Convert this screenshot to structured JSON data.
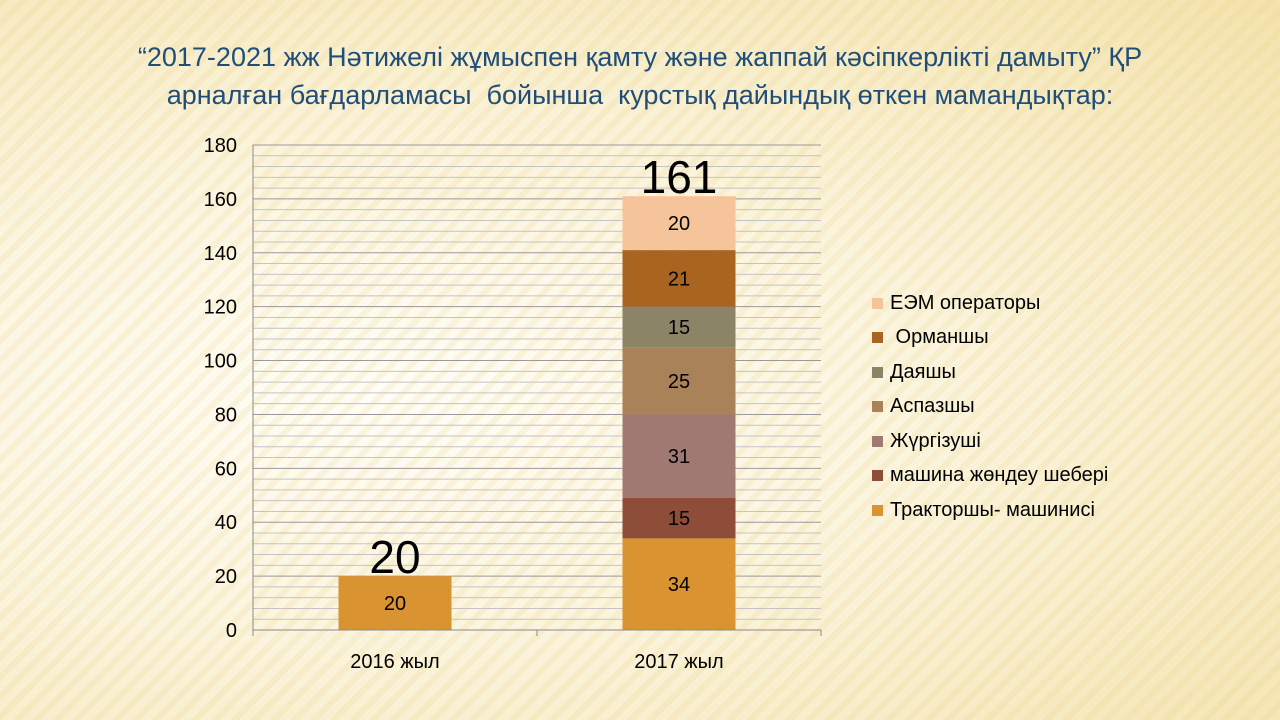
{
  "title_lines": [
    "“2017-2021 жж Нәтижелі жұмыспен қамту және жаппай кәсіпкерлікті дамыту” ҚР",
    "арналған бағдарламасы  бойынша  курстық дайындық өткен мамандықтар:"
  ],
  "chart_data": {
    "type": "bar",
    "stacked": true,
    "categories": [
      "2016 жыл",
      "2017 жыл"
    ],
    "series": [
      {
        "name": "Тракторшы- машинисі",
        "color": "#d99331",
        "values": [
          20,
          34
        ]
      },
      {
        "name": "машина жөндеу шебері",
        "color": "#8e4d38",
        "values": [
          0,
          15
        ]
      },
      {
        "name": "Жүргізуші",
        "color": "#a07a72",
        "values": [
          0,
          31
        ]
      },
      {
        "name": "Аспазшы",
        "color": "#a9825a",
        "values": [
          0,
          25
        ]
      },
      {
        "name": "Даяшы",
        "color": "#8c8467",
        "values": [
          0,
          15
        ]
      },
      {
        "name": " Орманшы",
        "color": "#a9651f",
        "values": [
          0,
          21
        ]
      },
      {
        "name": "ЕЭМ операторы",
        "color": "#f6c49a",
        "values": [
          0,
          20
        ]
      }
    ],
    "totals": [
      20,
      161
    ],
    "ylim": [
      0,
      180
    ],
    "yticks": [
      0,
      20,
      40,
      60,
      80,
      100,
      120,
      140,
      160,
      180
    ],
    "grid": true,
    "legend_position": "right"
  }
}
